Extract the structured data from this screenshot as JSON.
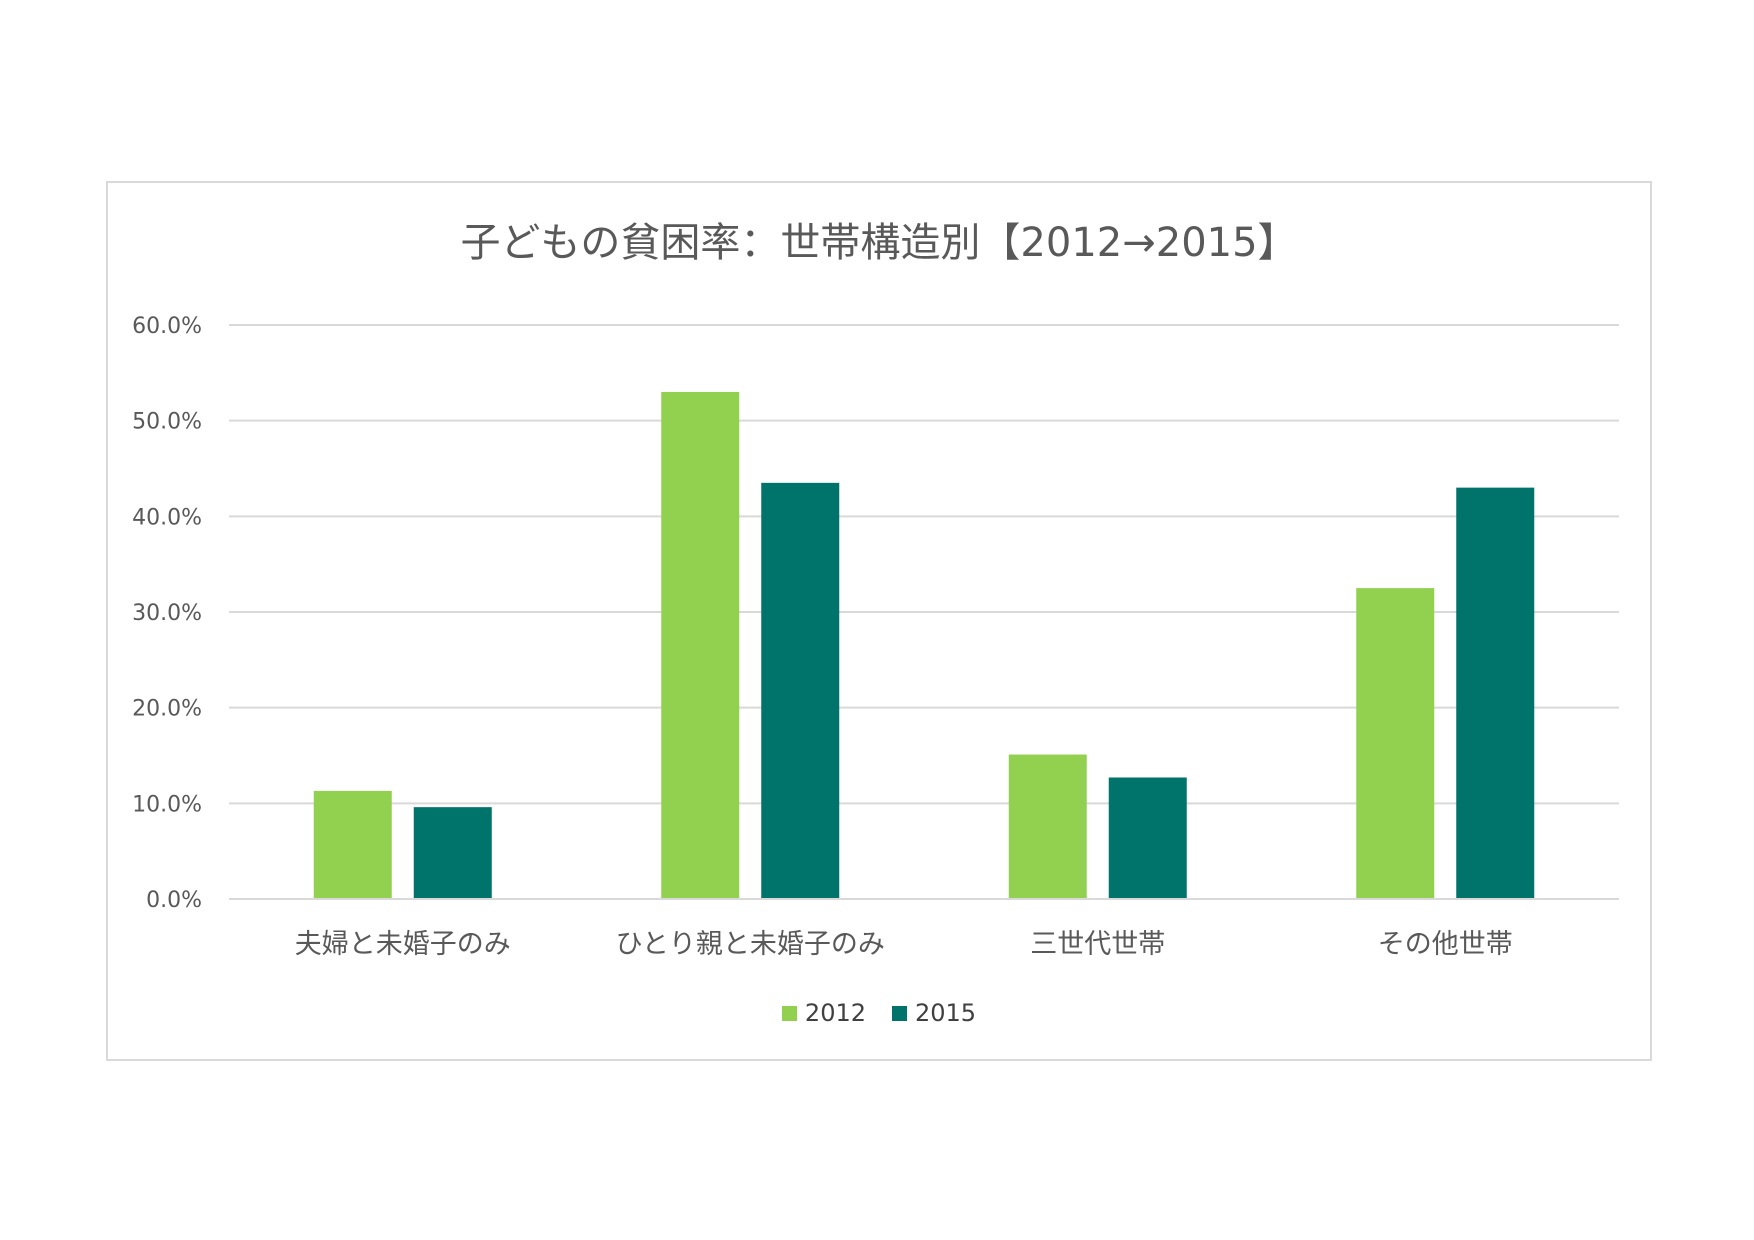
{
  "chart_data": {
    "type": "bar",
    "title": "子どもの貧困率：世帯構造別【2012→2015】",
    "categories": [
      "夫婦と未婚子のみ",
      "ひとり親と未婚子のみ",
      "三世代世帯",
      "その他世帯"
    ],
    "series": [
      {
        "name": "2012",
        "color": "#92d050",
        "values": [
          11.3,
          53.0,
          15.1,
          32.5
        ]
      },
      {
        "name": "2015",
        "color": "#00736a",
        "values": [
          9.6,
          43.5,
          12.7,
          43.0
        ]
      }
    ],
    "ylim": [
      0,
      60
    ],
    "yticks": [
      "0.0%",
      "10.0%",
      "20.0%",
      "30.0%",
      "40.0%",
      "50.0%",
      "60.0%"
    ],
    "grid": true,
    "legend_position": "bottom"
  }
}
